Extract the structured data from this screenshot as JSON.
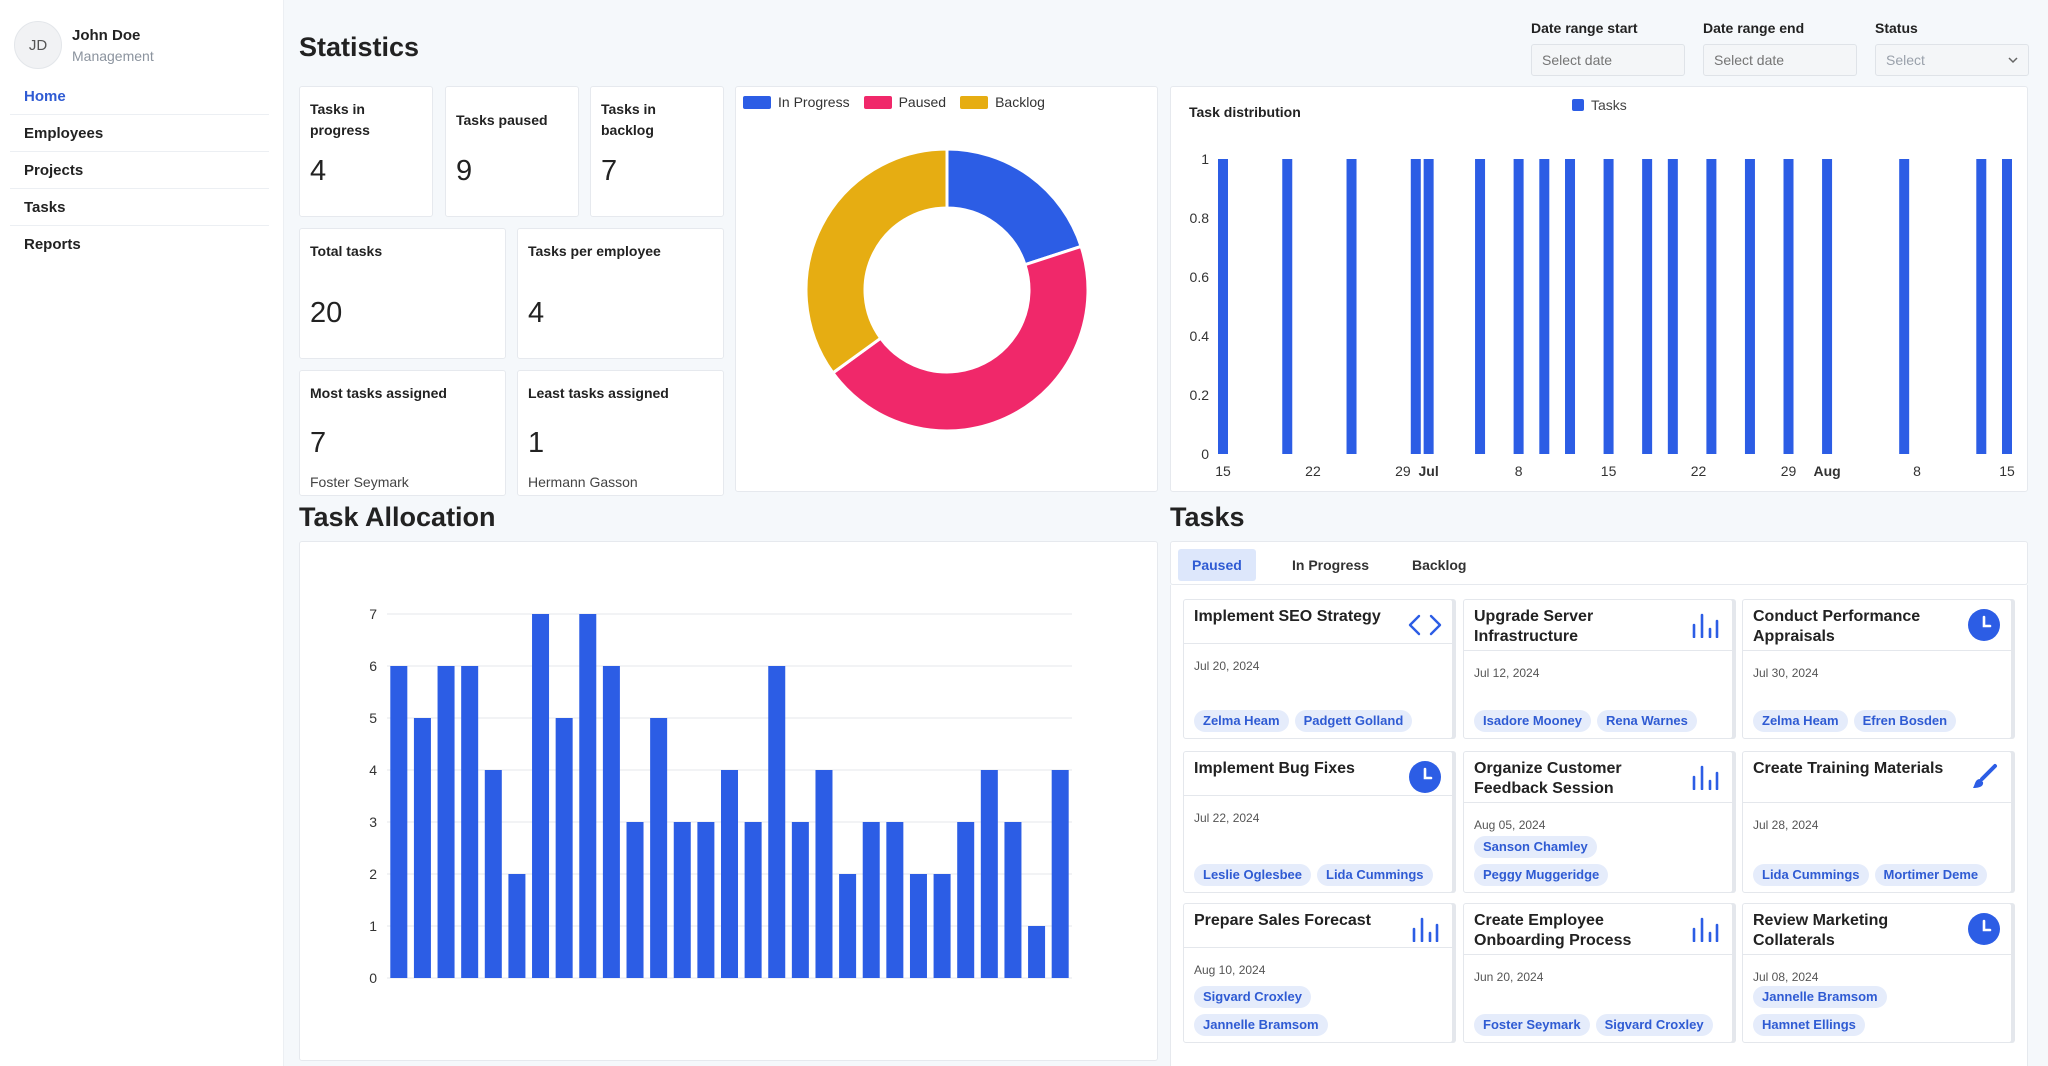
{
  "user": {
    "initials": "JD",
    "name": "John Doe",
    "role": "Management"
  },
  "nav": [
    {
      "label": "Home",
      "active": true
    },
    {
      "label": "Employees",
      "active": false
    },
    {
      "label": "Projects",
      "active": false
    },
    {
      "label": "Tasks",
      "active": false
    },
    {
      "label": "Reports",
      "active": false
    }
  ],
  "statistics": {
    "title": "Statistics",
    "cards": [
      {
        "label": "Tasks in progress",
        "value": "4"
      },
      {
        "label": "Tasks paused",
        "value": "9"
      },
      {
        "label": "Tasks in backlog",
        "value": "7"
      },
      {
        "label": "Total tasks",
        "value": "20"
      },
      {
        "label": "Tasks per employee",
        "value": "4"
      },
      {
        "label": "Most tasks assigned",
        "value": "7",
        "sub": "Foster Seymark"
      },
      {
        "label": "Least tasks assigned",
        "value": "1",
        "sub": "Hermann Gasson"
      }
    ]
  },
  "filters": {
    "start": {
      "label": "Date range start",
      "placeholder": "Select date"
    },
    "end": {
      "label": "Date range end",
      "placeholder": "Select date"
    },
    "status": {
      "label": "Status",
      "placeholder": "Select"
    }
  },
  "colors": {
    "progress": "#2c5de5",
    "paused": "#f0286a",
    "backlog": "#e6ad12",
    "bar": "#2c5de5",
    "accent": "#2f5bd3"
  },
  "chart_data": [
    {
      "type": "pie",
      "title": "",
      "labels": [
        "In Progress",
        "Paused",
        "Backlog"
      ],
      "values": [
        4,
        9,
        7
      ],
      "legend": "top-left"
    },
    {
      "type": "bar",
      "title": "Task distribution",
      "series_name": "Tasks",
      "x_start": "2024-06-15",
      "x_end": "2024-08-15",
      "x_tick_labels": [
        "15",
        "22",
        "29",
        "Jul",
        "8",
        "15",
        "22",
        "29",
        "Aug",
        "8",
        "15"
      ],
      "x_tick_offsets_days": [
        0,
        7,
        14,
        16,
        23,
        30,
        37,
        44,
        47,
        54,
        61
      ],
      "bar_offsets_days": [
        0,
        5,
        10,
        15,
        16,
        20,
        23,
        25,
        27,
        30,
        33,
        35,
        38,
        41,
        44,
        47,
        53,
        59,
        61
      ],
      "values": [
        1,
        1,
        1,
        1,
        1,
        1,
        1,
        1,
        1,
        1,
        1,
        1,
        1,
        1,
        1,
        1,
        1,
        1,
        1
      ],
      "y_ticks": [
        "0",
        "0.2",
        "0.4",
        "0.6",
        "0.8",
        "1"
      ],
      "ylim": [
        0,
        1
      ],
      "legend": "top-center"
    },
    {
      "type": "bar",
      "title": "Task Allocation",
      "values": [
        6,
        5,
        6,
        6,
        4,
        2,
        7,
        5,
        7,
        6,
        3,
        5,
        3,
        3,
        4,
        3,
        6,
        3,
        4,
        2,
        3,
        3,
        2,
        2,
        3,
        4,
        3,
        1,
        4
      ],
      "y_ticks": [
        "0",
        "1",
        "2",
        "3",
        "4",
        "5",
        "6",
        "7"
      ],
      "ylim": [
        0,
        7
      ]
    }
  ],
  "allocation": {
    "title": "Task Allocation"
  },
  "tasks": {
    "title": "Tasks",
    "tabs": [
      {
        "label": "Paused",
        "active": true
      },
      {
        "label": "In Progress",
        "active": false
      },
      {
        "label": "Backlog",
        "active": false
      }
    ],
    "items": [
      {
        "title": "Implement SEO Strategy",
        "date": "Jul 20, 2024",
        "icon": "code-icon",
        "assignees": [
          "Zelma Heam",
          "Padgett Golland"
        ]
      },
      {
        "title": "Upgrade Server Infrastructure",
        "date": "Jul 12, 2024",
        "icon": "bar-chart-icon",
        "assignees": [
          "Isadore Mooney",
          "Rena Warnes"
        ]
      },
      {
        "title": "Conduct Performance Appraisals",
        "date": "Jul 30, 2024",
        "icon": "clock-icon",
        "assignees": [
          "Zelma Heam",
          "Efren Bosden"
        ]
      },
      {
        "title": "Implement Bug Fixes",
        "date": "Jul 22, 2024",
        "icon": "clock-icon",
        "assignees": [
          "Leslie Oglesbee",
          "Lida Cummings"
        ]
      },
      {
        "title": "Organize Customer Feedback Session",
        "date": "Aug 05, 2024",
        "icon": "bar-chart-icon",
        "assignees": [
          "Sanson Chamley",
          "Peggy Muggeridge"
        ]
      },
      {
        "title": "Create Training Materials",
        "date": "Jul 28, 2024",
        "icon": "brush-icon",
        "assignees": [
          "Lida Cummings",
          "Mortimer Deme"
        ]
      },
      {
        "title": "Prepare Sales Forecast",
        "date": "Aug 10, 2024",
        "icon": "bar-chart-icon",
        "assignees": [
          "Sigvard Croxley",
          "Jannelle Bramsom"
        ]
      },
      {
        "title": "Create Employee Onboarding Process",
        "date": "Jun 20, 2024",
        "icon": "bar-chart-icon",
        "assignees": [
          "Foster Seymark",
          "Sigvard Croxley"
        ]
      },
      {
        "title": "Review Marketing Collaterals",
        "date": "Jul 08, 2024",
        "icon": "clock-icon",
        "assignees": [
          "Jannelle Bramsom",
          "Hamnet Ellings"
        ]
      }
    ]
  }
}
